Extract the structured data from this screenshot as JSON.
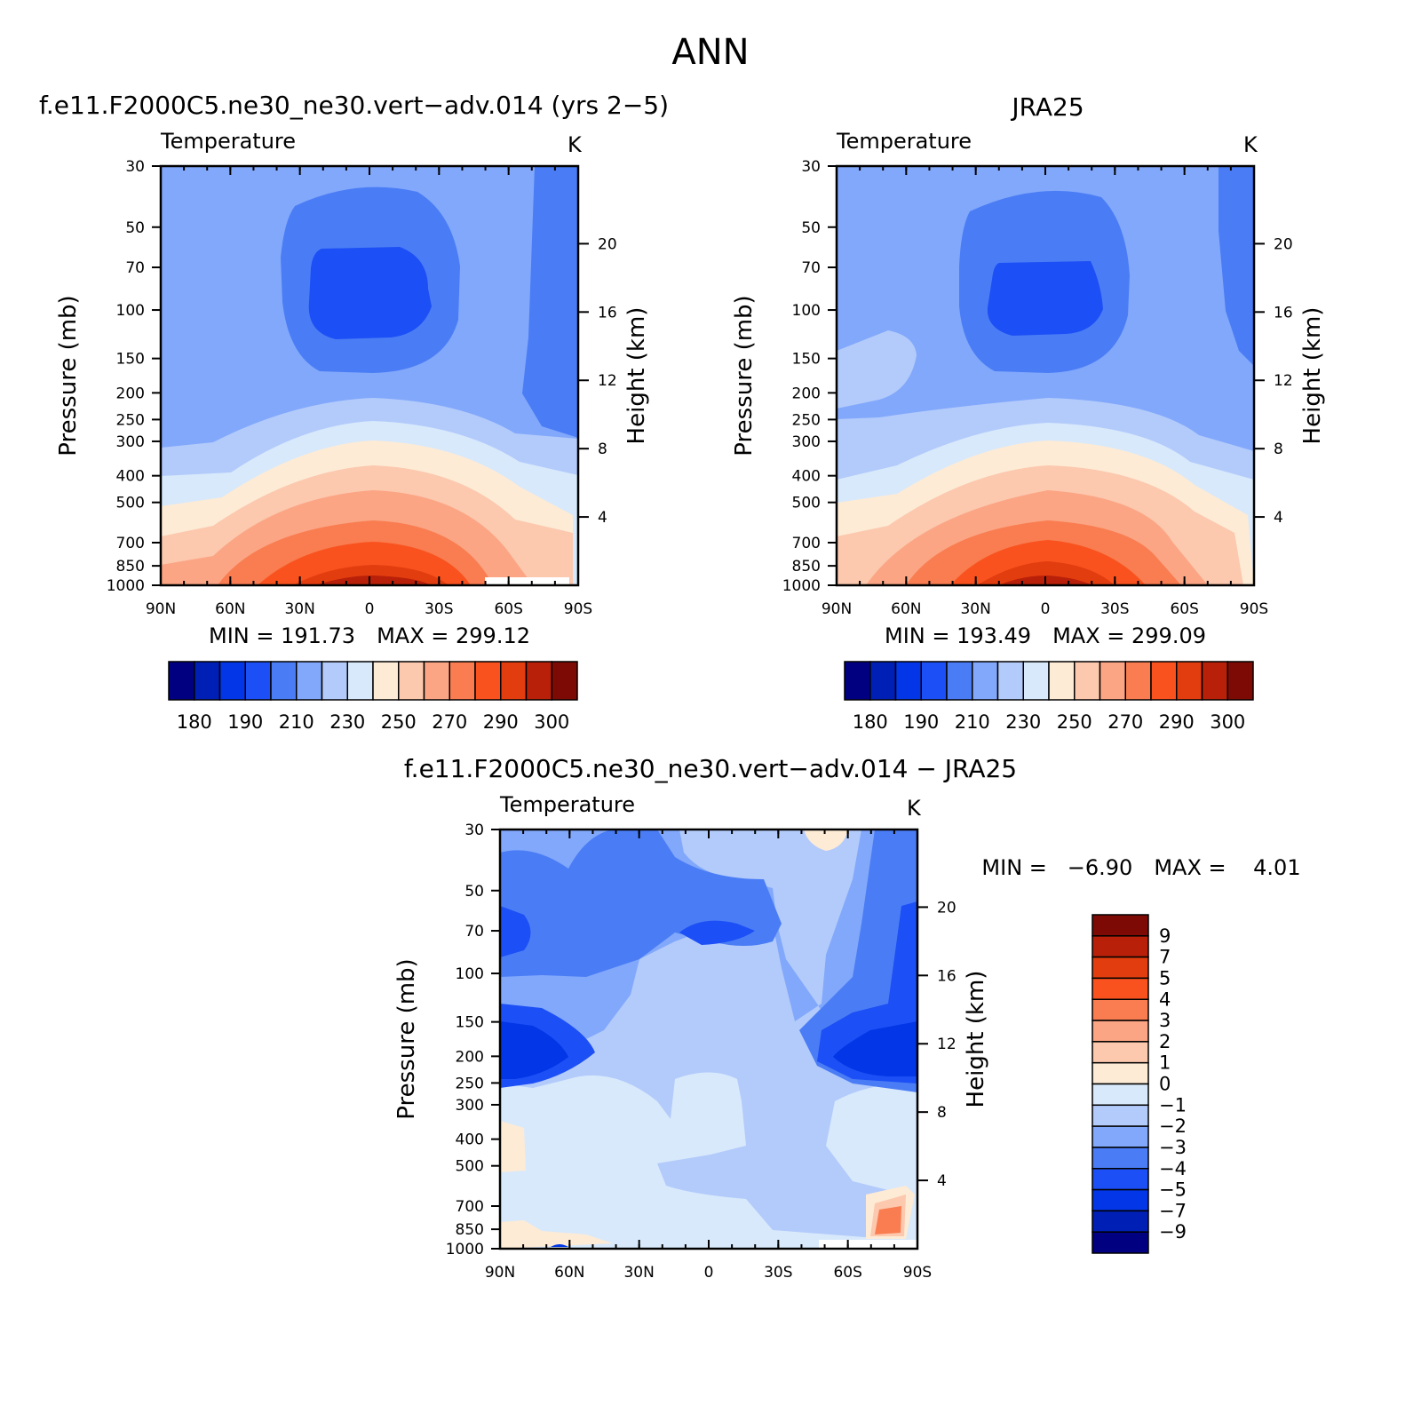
{
  "figure": {
    "title": "ANN",
    "top_left_title": "f.e11.F2000C5.ne30_ne30.vert−adv.014 (yrs 2−5)",
    "top_right_title": "JRA25",
    "bottom_title": "f.e11.F2000C5.ne30_ne30.vert−adv.014 − JRA25"
  },
  "chart_data": [
    {
      "type": "heatmap",
      "name": "model",
      "variable": "Temperature",
      "units": "K",
      "xlabel": "",
      "ylabel": "Pressure (mb)",
      "y2label": "Height (km)",
      "x_ticks": [
        "90N",
        "60N",
        "30N",
        "0",
        "30S",
        "60S",
        "90S"
      ],
      "y_ticks": [
        "30",
        "50",
        "70",
        "100",
        "150",
        "200",
        "250",
        "300",
        "400",
        "500",
        "700",
        "850",
        "1000"
      ],
      "y2_ticks": [
        "20",
        "16",
        "12",
        "8",
        "4"
      ],
      "min_label": "MIN = 191.73",
      "max_label": "MAX = 299.12",
      "min": 191.73,
      "max": 299.12,
      "colorbar_labels": [
        "180",
        "190",
        "210",
        "230",
        "250",
        "270",
        "290",
        "300"
      ],
      "colors": [
        "#000080",
        "#001fb5",
        "#0236e6",
        "#1c4ff5",
        "#4a7df5",
        "#82a8fb",
        "#b3cbfb",
        "#d8e9fb",
        "#fdebd5",
        "#fcc8ae",
        "#fba584",
        "#f97d50",
        "#f9521e",
        "#e23d0f",
        "#b82009",
        "#7e0a05"
      ]
    },
    {
      "type": "heatmap",
      "name": "obs",
      "variable": "Temperature",
      "units": "K",
      "xlabel": "",
      "ylabel": "Pressure (mb)",
      "y2label": "Height (km)",
      "x_ticks": [
        "90N",
        "60N",
        "30N",
        "0",
        "30S",
        "60S",
        "90S"
      ],
      "y_ticks": [
        "30",
        "50",
        "70",
        "100",
        "150",
        "200",
        "250",
        "300",
        "400",
        "500",
        "700",
        "850",
        "1000"
      ],
      "y2_ticks": [
        "20",
        "16",
        "12",
        "8",
        "4"
      ],
      "min_label": "MIN = 193.49",
      "max_label": "MAX = 299.09",
      "min": 193.49,
      "max": 299.09,
      "colorbar_labels": [
        "180",
        "190",
        "210",
        "230",
        "250",
        "270",
        "290",
        "300"
      ],
      "colors": [
        "#000080",
        "#001fb5",
        "#0236e6",
        "#1c4ff5",
        "#4a7df5",
        "#82a8fb",
        "#b3cbfb",
        "#d8e9fb",
        "#fdebd5",
        "#fcc8ae",
        "#fba584",
        "#f97d50",
        "#f9521e",
        "#e23d0f",
        "#b82009",
        "#7e0a05"
      ]
    },
    {
      "type": "heatmap",
      "name": "difference",
      "variable": "Temperature",
      "units": "K",
      "xlabel": "",
      "ylabel": "Pressure (mb)",
      "y2label": "Height (km)",
      "x_ticks": [
        "90N",
        "60N",
        "30N",
        "0",
        "30S",
        "60S",
        "90S"
      ],
      "y_ticks": [
        "30",
        "50",
        "70",
        "100",
        "150",
        "200",
        "250",
        "300",
        "400",
        "500",
        "700",
        "850",
        "1000"
      ],
      "y2_ticks": [
        "20",
        "16",
        "12",
        "8",
        "4"
      ],
      "min_label": "MIN =   −6.90",
      "max_label": "MAX =    4.01",
      "min": -6.9,
      "max": 4.01,
      "colorbar_labels": [
        "9",
        "7",
        "5",
        "4",
        "3",
        "2",
        "1",
        "0",
        "−1",
        "−2",
        "−3",
        "−4",
        "−5",
        "−7",
        "−9"
      ],
      "colors": [
        "#7e0a05",
        "#b82009",
        "#e23d0f",
        "#f9521e",
        "#f97d50",
        "#fba584",
        "#fcc8ae",
        "#fdebd5",
        "#d8e9fb",
        "#b3cbfb",
        "#82a8fb",
        "#4a7df5",
        "#1c4ff5",
        "#0236e6",
        "#001fb5",
        "#000080"
      ]
    }
  ]
}
